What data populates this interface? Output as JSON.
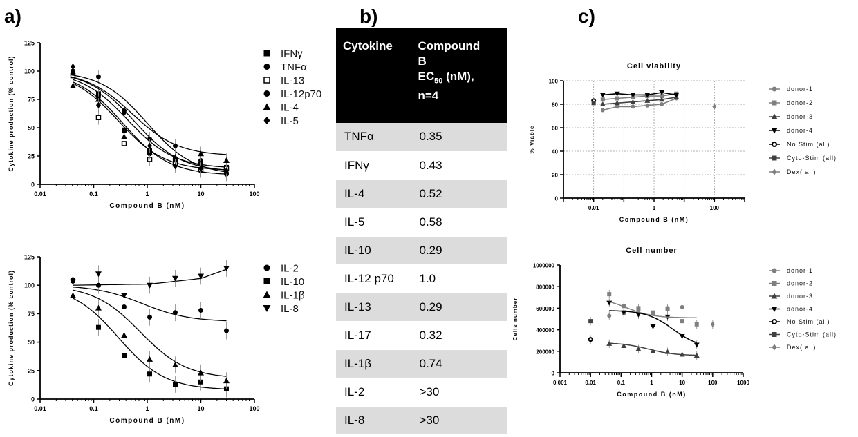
{
  "panels": {
    "a": "a)",
    "b": "b)",
    "c": "c)"
  },
  "table": {
    "header": {
      "col1": "Cytokine",
      "col2_line1": "Compound",
      "col2_line2": "B",
      "col2_ec": "EC",
      "col2_sub": "50",
      "col2_unit": " (nM),",
      "col2_n": "n=4"
    },
    "rows": [
      {
        "cytokine": "TNFα",
        "value": "0.35"
      },
      {
        "cytokine": "IFNγ",
        "value": "0.43"
      },
      {
        "cytokine": "IL-4",
        "value": "0.52"
      },
      {
        "cytokine": "IL-5",
        "value": "0.58"
      },
      {
        "cytokine": "IL-10",
        "value": "0.29"
      },
      {
        "cytokine": "IL-12 p70",
        "value": "1.0"
      },
      {
        "cytokine": "IL-13",
        "value": "0.29"
      },
      {
        "cytokine": "IL-17",
        "value": "0.32"
      },
      {
        "cytokine": "IL-1β",
        "value": "0.74"
      },
      {
        "cytokine": "IL-2",
        "value": ">30"
      },
      {
        "cytokine": "IL-8",
        "value": ">30"
      }
    ]
  },
  "chart_data": [
    {
      "id": "a-top",
      "type": "scatter",
      "title": "",
      "xlabel": "Compound B (nM)",
      "ylabel": "Cytokine production (% control)",
      "xscale": "log",
      "xlim": [
        0.01,
        100
      ],
      "ylim": [
        0,
        125
      ],
      "xticks": [
        "0.01",
        "0.1",
        "1",
        "10",
        "100"
      ],
      "yticks": [
        "0",
        "25",
        "50",
        "75",
        "100",
        "125"
      ],
      "grid": false,
      "legend": "right",
      "x": [
        0.041,
        0.123,
        0.37,
        1.11,
        3.33,
        10,
        30
      ],
      "series": [
        {
          "name": "IFNγ",
          "marker": "square",
          "values": [
            97,
            80,
            48,
            30,
            22,
            18,
            15
          ],
          "fit": {
            "top": 100,
            "bottom": 14,
            "ec50": 0.43
          }
        },
        {
          "name": "TNFα",
          "marker": "circle",
          "values": [
            100,
            95,
            47,
            27,
            20,
            12,
            9
          ],
          "fit": {
            "top": 100,
            "bottom": 8,
            "ec50": 0.35
          }
        },
        {
          "name": "IL-13",
          "marker": "square-open",
          "values": [
            96,
            59,
            36,
            22,
            18,
            13,
            14
          ],
          "fit": {
            "top": 100,
            "bottom": 12,
            "ec50": 0.29
          }
        },
        {
          "name": "IL-12p70",
          "marker": "circle",
          "values": [
            98,
            77,
            65,
            40,
            34,
            21,
            10
          ],
          "fit": {
            "top": 100,
            "bottom": 8,
            "ec50": 1.0
          }
        },
        {
          "name": "IL-4",
          "marker": "triangle",
          "values": [
            87,
            75,
            42,
            28,
            24,
            27,
            21
          ],
          "fit": {
            "top": 100,
            "bottom": 25,
            "ec50": 0.52
          }
        },
        {
          "name": "IL-5",
          "marker": "diamond",
          "values": [
            104,
            70,
            63,
            34,
            16,
            14,
            12
          ],
          "fit": {
            "top": 100,
            "bottom": 11,
            "ec50": 0.58
          }
        }
      ]
    },
    {
      "id": "a-bottom",
      "type": "scatter",
      "title": "",
      "xlabel": "Compound B (nM)",
      "ylabel": "Cytokine production (% control)",
      "xscale": "log",
      "xlim": [
        0.01,
        100
      ],
      "ylim": [
        0,
        125
      ],
      "xticks": [
        "0.01",
        "0.1",
        "1",
        "10",
        "100"
      ],
      "yticks": [
        "0",
        "25",
        "50",
        "75",
        "100",
        "125"
      ],
      "grid": false,
      "legend": "right",
      "x": [
        0.041,
        0.123,
        0.37,
        1.11,
        3.33,
        10,
        30
      ],
      "series": [
        {
          "name": "IL-2",
          "marker": "circle",
          "values": [
            105,
            100,
            81,
            72,
            76,
            78,
            60
          ],
          "fit": {
            "top": 100,
            "bottom": 68,
            "ec50": 0.8
          }
        },
        {
          "name": "IL-10",
          "marker": "square",
          "values": [
            104,
            63,
            38,
            22,
            13,
            15,
            9
          ],
          "fit": {
            "top": 100,
            "bottom": 8,
            "ec50": 0.29
          }
        },
        {
          "name": "IL-1β",
          "marker": "triangle",
          "values": [
            91,
            80,
            56,
            35,
            30,
            23,
            16
          ],
          "fit": {
            "top": 100,
            "bottom": 18,
            "ec50": 0.74
          }
        },
        {
          "name": "IL-8",
          "marker": "triangle-down",
          "values": [
            103,
            110,
            91,
            100,
            106,
            108,
            115
          ],
          "fit": {
            "curve": [
              [
                0.041,
                100
              ],
              [
                1.11,
                101
              ],
              [
                10,
                106
              ],
              [
                30,
                114
              ]
            ]
          }
        }
      ]
    },
    {
      "id": "c-top",
      "type": "scatter",
      "title": "Cell viability",
      "xlabel": "Compound B (nM)",
      "ylabel": "% Viable",
      "xscale": "log",
      "xlim": [
        0.001,
        1000
      ],
      "ylim": [
        0,
        100
      ],
      "xticks": [
        "0.01",
        "1",
        "100"
      ],
      "yticks": [
        "0",
        "20",
        "40",
        "60",
        "80",
        "100"
      ],
      "grid": true,
      "legend": "right",
      "series": [
        {
          "name": "donor-1",
          "marker": "circle",
          "color": "#7f7f7f",
          "x": [
            0.02,
            0.06,
            0.2,
            0.6,
            1.8,
            5.5
          ],
          "values": [
            75,
            78,
            78,
            79,
            80,
            85
          ]
        },
        {
          "name": "donor-2",
          "marker": "square",
          "color": "#7f7f7f",
          "x": [
            0.02,
            0.06,
            0.2,
            0.6,
            1.8,
            5.5
          ],
          "values": [
            84,
            85,
            86,
            87,
            87,
            89
          ]
        },
        {
          "name": "donor-3",
          "marker": "triangle",
          "color": "#404040",
          "x": [
            0.02,
            0.06,
            0.2,
            0.6,
            1.8,
            5.5
          ],
          "values": [
            80,
            81,
            82,
            83,
            84,
            86
          ]
        },
        {
          "name": "donor-4",
          "marker": "triangle-down",
          "color": "#000000",
          "x": [
            0.02,
            0.06,
            0.2,
            0.6,
            1.8,
            5.5
          ],
          "values": [
            88,
            89,
            88,
            88,
            90,
            88
          ]
        },
        {
          "name": "No Stim (all)",
          "marker": "circle-open",
          "color": "#000000",
          "x": [
            0.01
          ],
          "values": [
            83
          ]
        },
        {
          "name": "Cyto-Stim (all)",
          "marker": "square",
          "color": "#404040",
          "x": [
            0.01
          ],
          "values": [
            81
          ]
        },
        {
          "name": "Dex( all)",
          "marker": "diamond",
          "color": "#7f7f7f",
          "x": [
            100
          ],
          "values": [
            78
          ]
        }
      ]
    },
    {
      "id": "c-bottom",
      "type": "scatter",
      "title": "Cell number",
      "xlabel": "Compound B (nM)",
      "ylabel": "Cells number",
      "xscale": "log",
      "xlim": [
        0.001,
        1000
      ],
      "ylim": [
        0,
        1000000
      ],
      "xticks": [
        "0.001",
        "0.01",
        "0.1",
        "1",
        "10",
        "100",
        "1000"
      ],
      "yticks": [
        "0",
        "200000",
        "400000",
        "600000",
        "800000",
        "1000000"
      ],
      "grid": false,
      "legend": "right",
      "series": [
        {
          "name": "donor-1",
          "marker": "circle",
          "color": "#7f7f7f",
          "x": [
            0.041,
            0.123,
            0.37,
            1.11,
            3.33,
            10
          ],
          "values": [
            530000,
            550000,
            580000,
            550000,
            600000,
            610000
          ]
        },
        {
          "name": "donor-2",
          "marker": "square",
          "color": "#7f7f7f",
          "x": [
            0.041,
            0.123,
            0.37,
            1.11,
            3.33,
            10,
            30
          ],
          "values": [
            730000,
            620000,
            600000,
            560000,
            590000,
            480000,
            450000
          ]
        },
        {
          "name": "donor-3",
          "marker": "triangle",
          "color": "#404040",
          "x": [
            0.041,
            0.123,
            0.37,
            1.11,
            3.33,
            10,
            30
          ],
          "values": [
            270000,
            250000,
            220000,
            200000,
            195000,
            170000,
            160000
          ]
        },
        {
          "name": "donor-4",
          "marker": "triangle-down",
          "color": "#000000",
          "x": [
            0.041,
            0.123,
            0.37,
            1.11,
            3.33,
            10,
            30
          ],
          "values": [
            650000,
            560000,
            540000,
            430000,
            520000,
            340000,
            260000
          ]
        },
        {
          "name": "No Stim (all)",
          "marker": "circle-open",
          "color": "#000000",
          "x": [
            0.01
          ],
          "values": [
            310000
          ]
        },
        {
          "name": "Cyto-Stim (all)",
          "marker": "square",
          "color": "#404040",
          "x": [
            0.01
          ],
          "values": [
            480000
          ]
        },
        {
          "name": "Dex( all)",
          "marker": "diamond",
          "color": "#7f7f7f",
          "x": [
            100
          ],
          "values": [
            450000
          ]
        }
      ]
    }
  ]
}
